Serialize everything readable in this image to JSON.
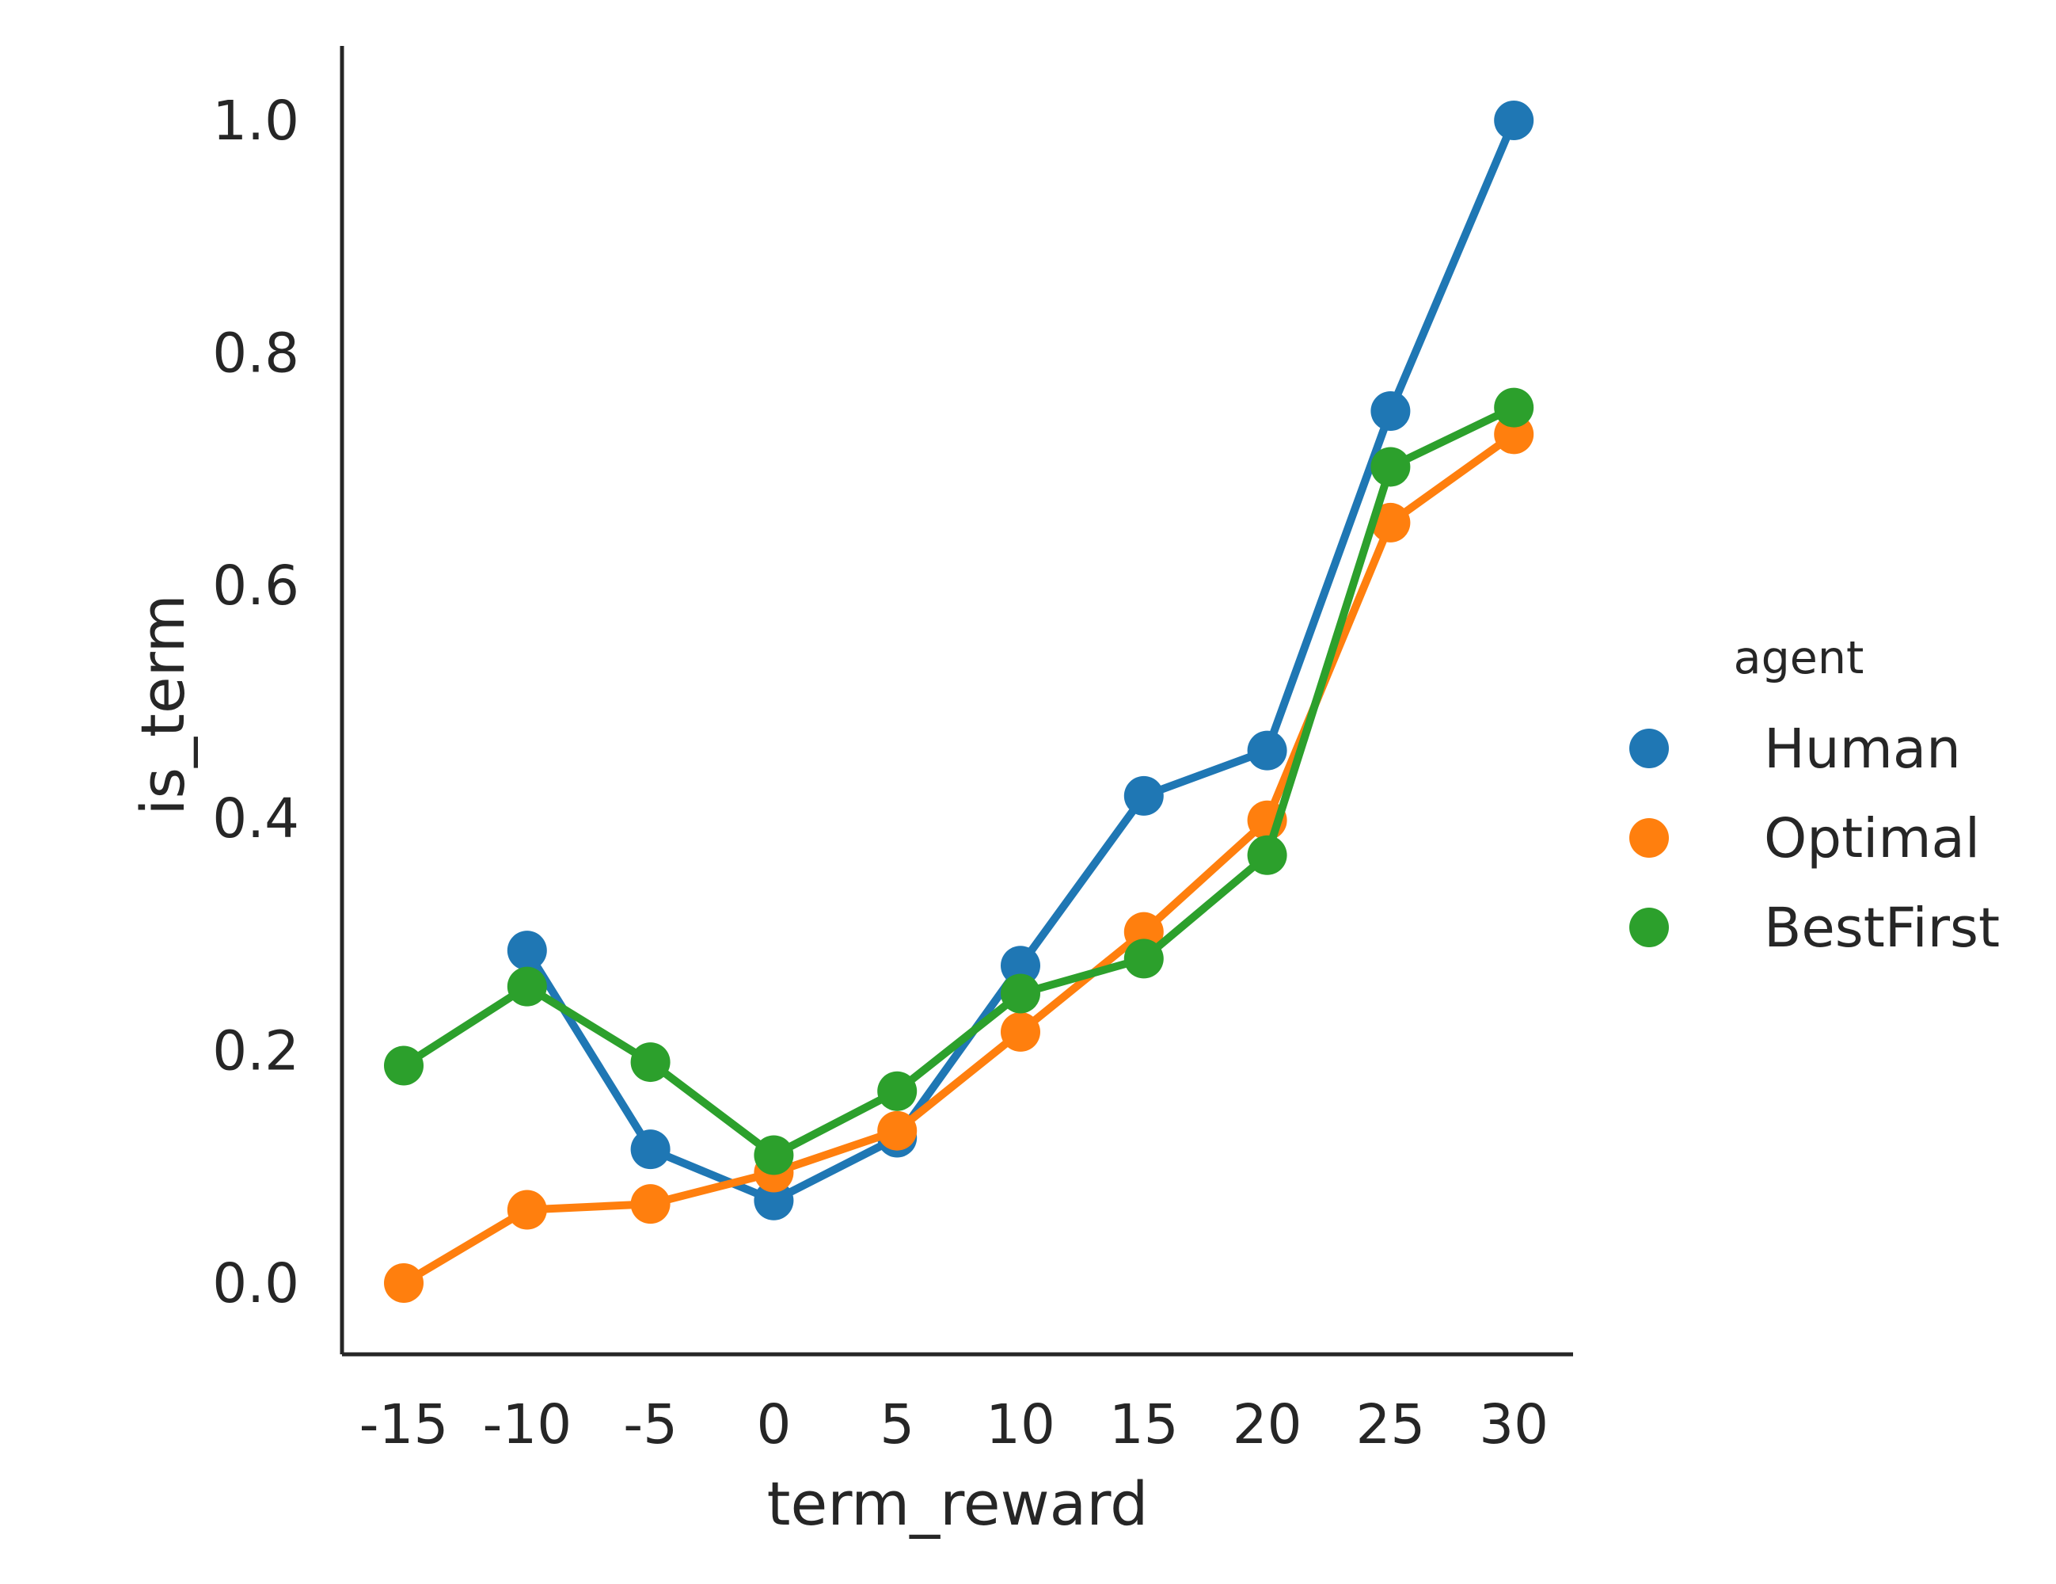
{
  "chart_data": {
    "type": "line",
    "title": "",
    "xlabel": "term_reward",
    "ylabel": "is_term",
    "categories": [
      "-15",
      "-10",
      "-5",
      "0",
      "5",
      "10",
      "15",
      "20",
      "25",
      "30"
    ],
    "ylim": [
      -0.065,
      1.065
    ],
    "yticks": [
      "0.0",
      "0.2",
      "0.4",
      "0.6",
      "0.8",
      "1.0"
    ],
    "ytick_values": [
      0.0,
      0.2,
      0.4,
      0.6,
      0.8,
      1.0
    ],
    "grid": false,
    "legend": {
      "title": "agent",
      "placement": "right"
    },
    "series": [
      {
        "name": "Human",
        "color": "#1f77b4",
        "values": [
          null,
          0.286,
          0.115,
          0.071,
          0.125,
          0.273,
          0.419,
          0.458,
          0.75,
          1.0
        ]
      },
      {
        "name": "Optimal",
        "color": "#ff7f0e",
        "values": [
          0.0,
          0.063,
          0.068,
          0.095,
          0.131,
          0.216,
          0.302,
          0.398,
          0.654,
          0.73
        ]
      },
      {
        "name": "BestFirst",
        "color": "#2ca02c",
        "values": [
          0.187,
          0.255,
          0.19,
          0.11,
          0.165,
          0.249,
          0.279,
          0.368,
          0.702,
          0.753
        ]
      }
    ]
  }
}
